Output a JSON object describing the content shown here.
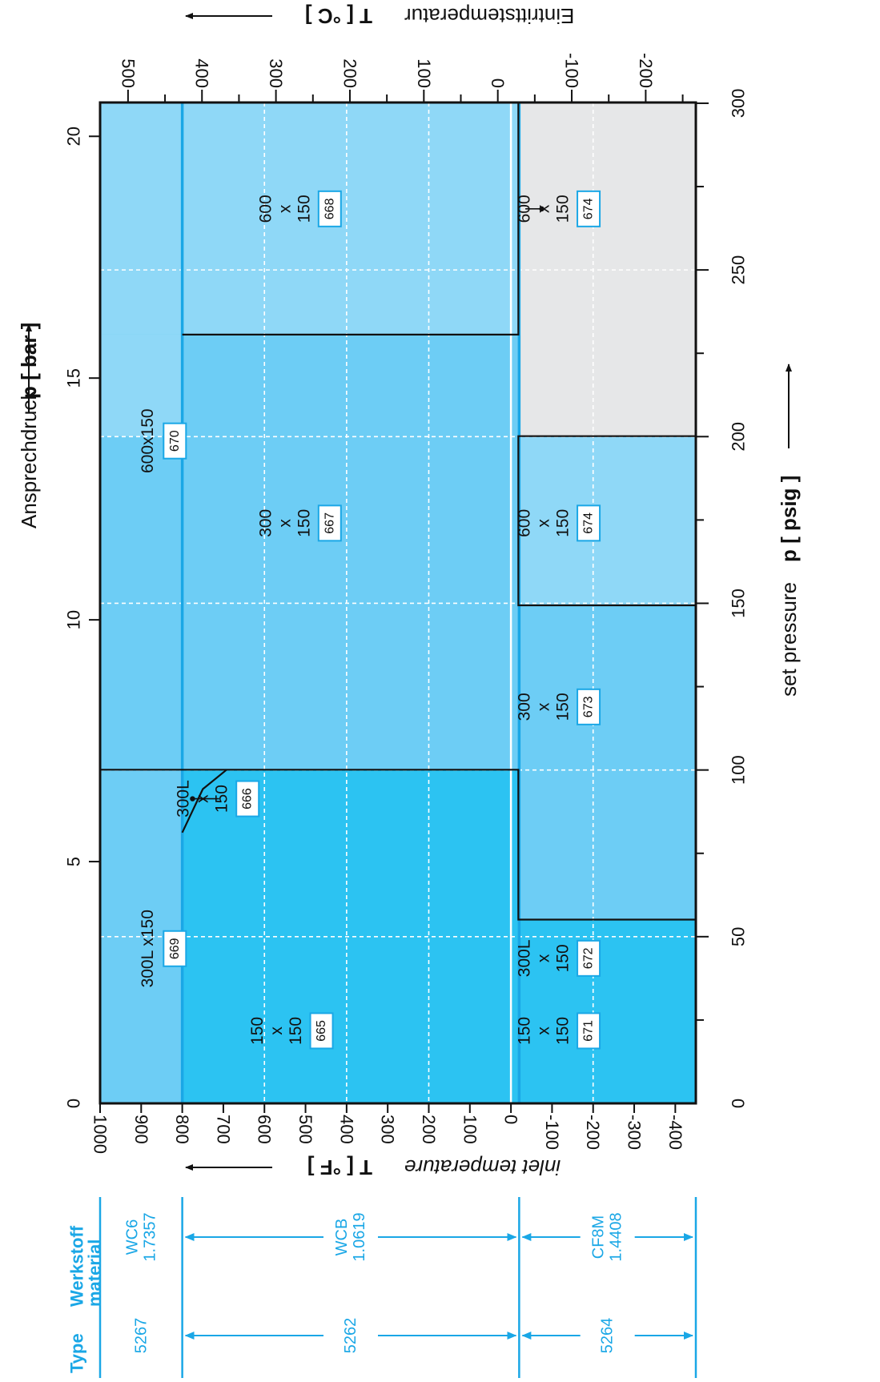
{
  "chart_data": {
    "type": "area",
    "title": "",
    "x_axis": {
      "label_de": "Ansprechdruck",
      "label_unit": "p [ bar ]",
      "range": [
        0,
        20.7
      ],
      "ticks": [
        {
          "v": 0,
          "label": "0"
        },
        {
          "v": 5,
          "label": "5"
        },
        {
          "v": 10,
          "label": "10"
        },
        {
          "v": 15,
          "label": "15"
        },
        {
          "v": 20,
          "label": "20"
        }
      ]
    },
    "x2_axis": {
      "label_en": "set pressure",
      "label_unit": "p [ psig ]",
      "ticks": [
        {
          "v": 0,
          "label": "0"
        },
        {
          "v": 50,
          "label": "50"
        },
        {
          "v": 100,
          "label": "100"
        },
        {
          "v": 150,
          "label": "150"
        },
        {
          "v": 200,
          "label": "200"
        },
        {
          "v": 250,
          "label": "250"
        },
        {
          "v": 300,
          "label": "300"
        }
      ],
      "minor": [
        25,
        75,
        125,
        175,
        225,
        275
      ]
    },
    "y_axis": {
      "label_en": "inlet temperature",
      "label_unit": "T [ °F ]",
      "range": [
        -450,
        1000
      ],
      "ticks": [
        {
          "v": 1000,
          "label": "1000"
        },
        {
          "v": 900,
          "label": "900"
        },
        {
          "v": 800,
          "label": "800"
        },
        {
          "v": 700,
          "label": "700"
        },
        {
          "v": 600,
          "label": "600"
        },
        {
          "v": 500,
          "label": "500"
        },
        {
          "v": 400,
          "label": "400"
        },
        {
          "v": 300,
          "label": "300"
        },
        {
          "v": 200,
          "label": "200"
        },
        {
          "v": 100,
          "label": "100"
        },
        {
          "v": 0,
          "label": "0"
        },
        {
          "v": -100,
          "label": "-100"
        },
        {
          "v": -200,
          "label": "-200"
        },
        {
          "v": -300,
          "label": "-300"
        },
        {
          "v": -400,
          "label": "-400"
        }
      ],
      "grid_at": [
        600,
        400,
        200,
        0,
        -200
      ]
    },
    "y2_axis": {
      "label_de": "Eintrittstemperatur",
      "label_unit": "T [ °C ]",
      "ticks": [
        {
          "v": 500,
          "label": "500"
        },
        {
          "v": 400,
          "label": "400"
        },
        {
          "v": 300,
          "label": "300"
        },
        {
          "v": 200,
          "label": "200"
        },
        {
          "v": 100,
          "label": "100"
        },
        {
          "v": 0,
          "label": "0"
        },
        {
          "v": -100,
          "label": "-100"
        },
        {
          "v": -200,
          "label": "-200"
        }
      ],
      "minor": [
        450,
        350,
        250,
        150,
        50,
        -50,
        -150,
        -250
      ]
    },
    "regions": [
      {
        "p": [
          0,
          20.7
        ],
        "t": [
          800,
          1000
        ],
        "color": "#6dcdf5"
      },
      {
        "p": [
          15.9,
          20.7
        ],
        "t": [
          -18,
          1000
        ],
        "color": "#8fd8f7"
      },
      {
        "p": [
          13.8,
          15.9
        ],
        "t": [
          800,
          1000
        ],
        "color": "#8fd8f7"
      },
      {
        "p": [
          0,
          6.9
        ],
        "t": [
          -450,
          800
        ],
        "color": "#2cc3f2"
      },
      {
        "p": [
          6.9,
          15.9
        ],
        "t": [
          -18,
          800
        ],
        "color": "#6dcdf5"
      },
      {
        "p": [
          3.8,
          10.3
        ],
        "t": [
          -450,
          -18
        ],
        "color": "#6dcdf5"
      },
      {
        "p": [
          10.3,
          13.8
        ],
        "t": [
          -450,
          -18
        ],
        "color": "#8fd8f7"
      },
      {
        "p": [
          13.8,
          20.7
        ],
        "t": [
          -450,
          -18
        ],
        "color": "#e6e7e8"
      }
    ],
    "boundaries": [
      [
        [
          6.9,
          1000
        ],
        [
          6.9,
          -18
        ],
        [
          3.8,
          -18
        ],
        [
          3.8,
          -450
        ]
      ],
      [
        [
          15.9,
          800
        ],
        [
          15.9,
          -18
        ],
        [
          20.7,
          -18
        ]
      ],
      [
        [
          10.3,
          -450
        ],
        [
          10.3,
          -18
        ],
        [
          13.8,
          -18
        ],
        [
          13.8,
          -450
        ]
      ],
      [
        [
          5.6,
          800
        ],
        [
          6.5,
          750
        ],
        [
          6.9,
          692
        ]
      ]
    ],
    "pointers": [
      {
        "from": [
          6.3,
          710
        ],
        "to": [
          6.3,
          775
        ]
      },
      {
        "from": [
          18.5,
          -35
        ],
        "to": [
          18.5,
          -75
        ]
      }
    ],
    "hlines": [
      {
        "t": 800,
        "color": "#1aa7e6"
      },
      {
        "t": -20,
        "color": "#1aa7e6"
      },
      {
        "t": 0,
        "color": "#ffffff"
      }
    ],
    "region_labels": [
      {
        "p": 1.5,
        "t": 500,
        "lines": [
          "150",
          "x",
          "150"
        ],
        "code": "665"
      },
      {
        "p": 1.5,
        "t": -150,
        "lines": [
          "150",
          "x",
          "150"
        ],
        "code": "671"
      },
      {
        "p": 3.0,
        "t": -150,
        "lines": [
          "300L",
          "x",
          "150"
        ],
        "code": "672"
      },
      {
        "p": 6.3,
        "t": 680,
        "lines": [
          "300L",
          "x",
          "150"
        ],
        "code": "666"
      },
      {
        "p": 8.2,
        "t": -150,
        "lines": [
          "300",
          "x",
          "150"
        ],
        "code": "673"
      },
      {
        "p": 12.0,
        "t": 480,
        "lines": [
          "300",
          "x",
          "150"
        ],
        "code": "667"
      },
      {
        "p": 12.0,
        "t": -150,
        "lines": [
          "600",
          "x",
          "150"
        ],
        "code": "674"
      },
      {
        "p": 18.5,
        "t": 480,
        "lines": [
          "600",
          "x",
          "150"
        ],
        "code": "668"
      },
      {
        "p": 18.5,
        "t": -150,
        "lines": [
          "600",
          "x",
          "150"
        ],
        "code": "674"
      }
    ],
    "band_labels": [
      {
        "p": 3.2,
        "t": 900,
        "text": "300L x150",
        "code": "669"
      },
      {
        "p": 13.7,
        "t": 900,
        "text": "600x150",
        "code": "670"
      }
    ]
  },
  "side_table": {
    "header_material": [
      "Werkstoff",
      "material"
    ],
    "header_type": "Type",
    "rows": [
      {
        "t_from": 1000,
        "t_to": 800,
        "material": [
          "WC6",
          "1.7357"
        ],
        "type": "5267"
      },
      {
        "t_from": 800,
        "t_to": 0,
        "material": [
          "WCB",
          "1.0619"
        ],
        "type": "5262"
      },
      {
        "t_from": 0,
        "t_to": -450,
        "material": [
          "CF8M",
          "1.4408"
        ],
        "type": "5264"
      }
    ]
  },
  "colors": {
    "accent": "#1aa7e6",
    "frame": "#111111",
    "grid": "#ffffff"
  }
}
